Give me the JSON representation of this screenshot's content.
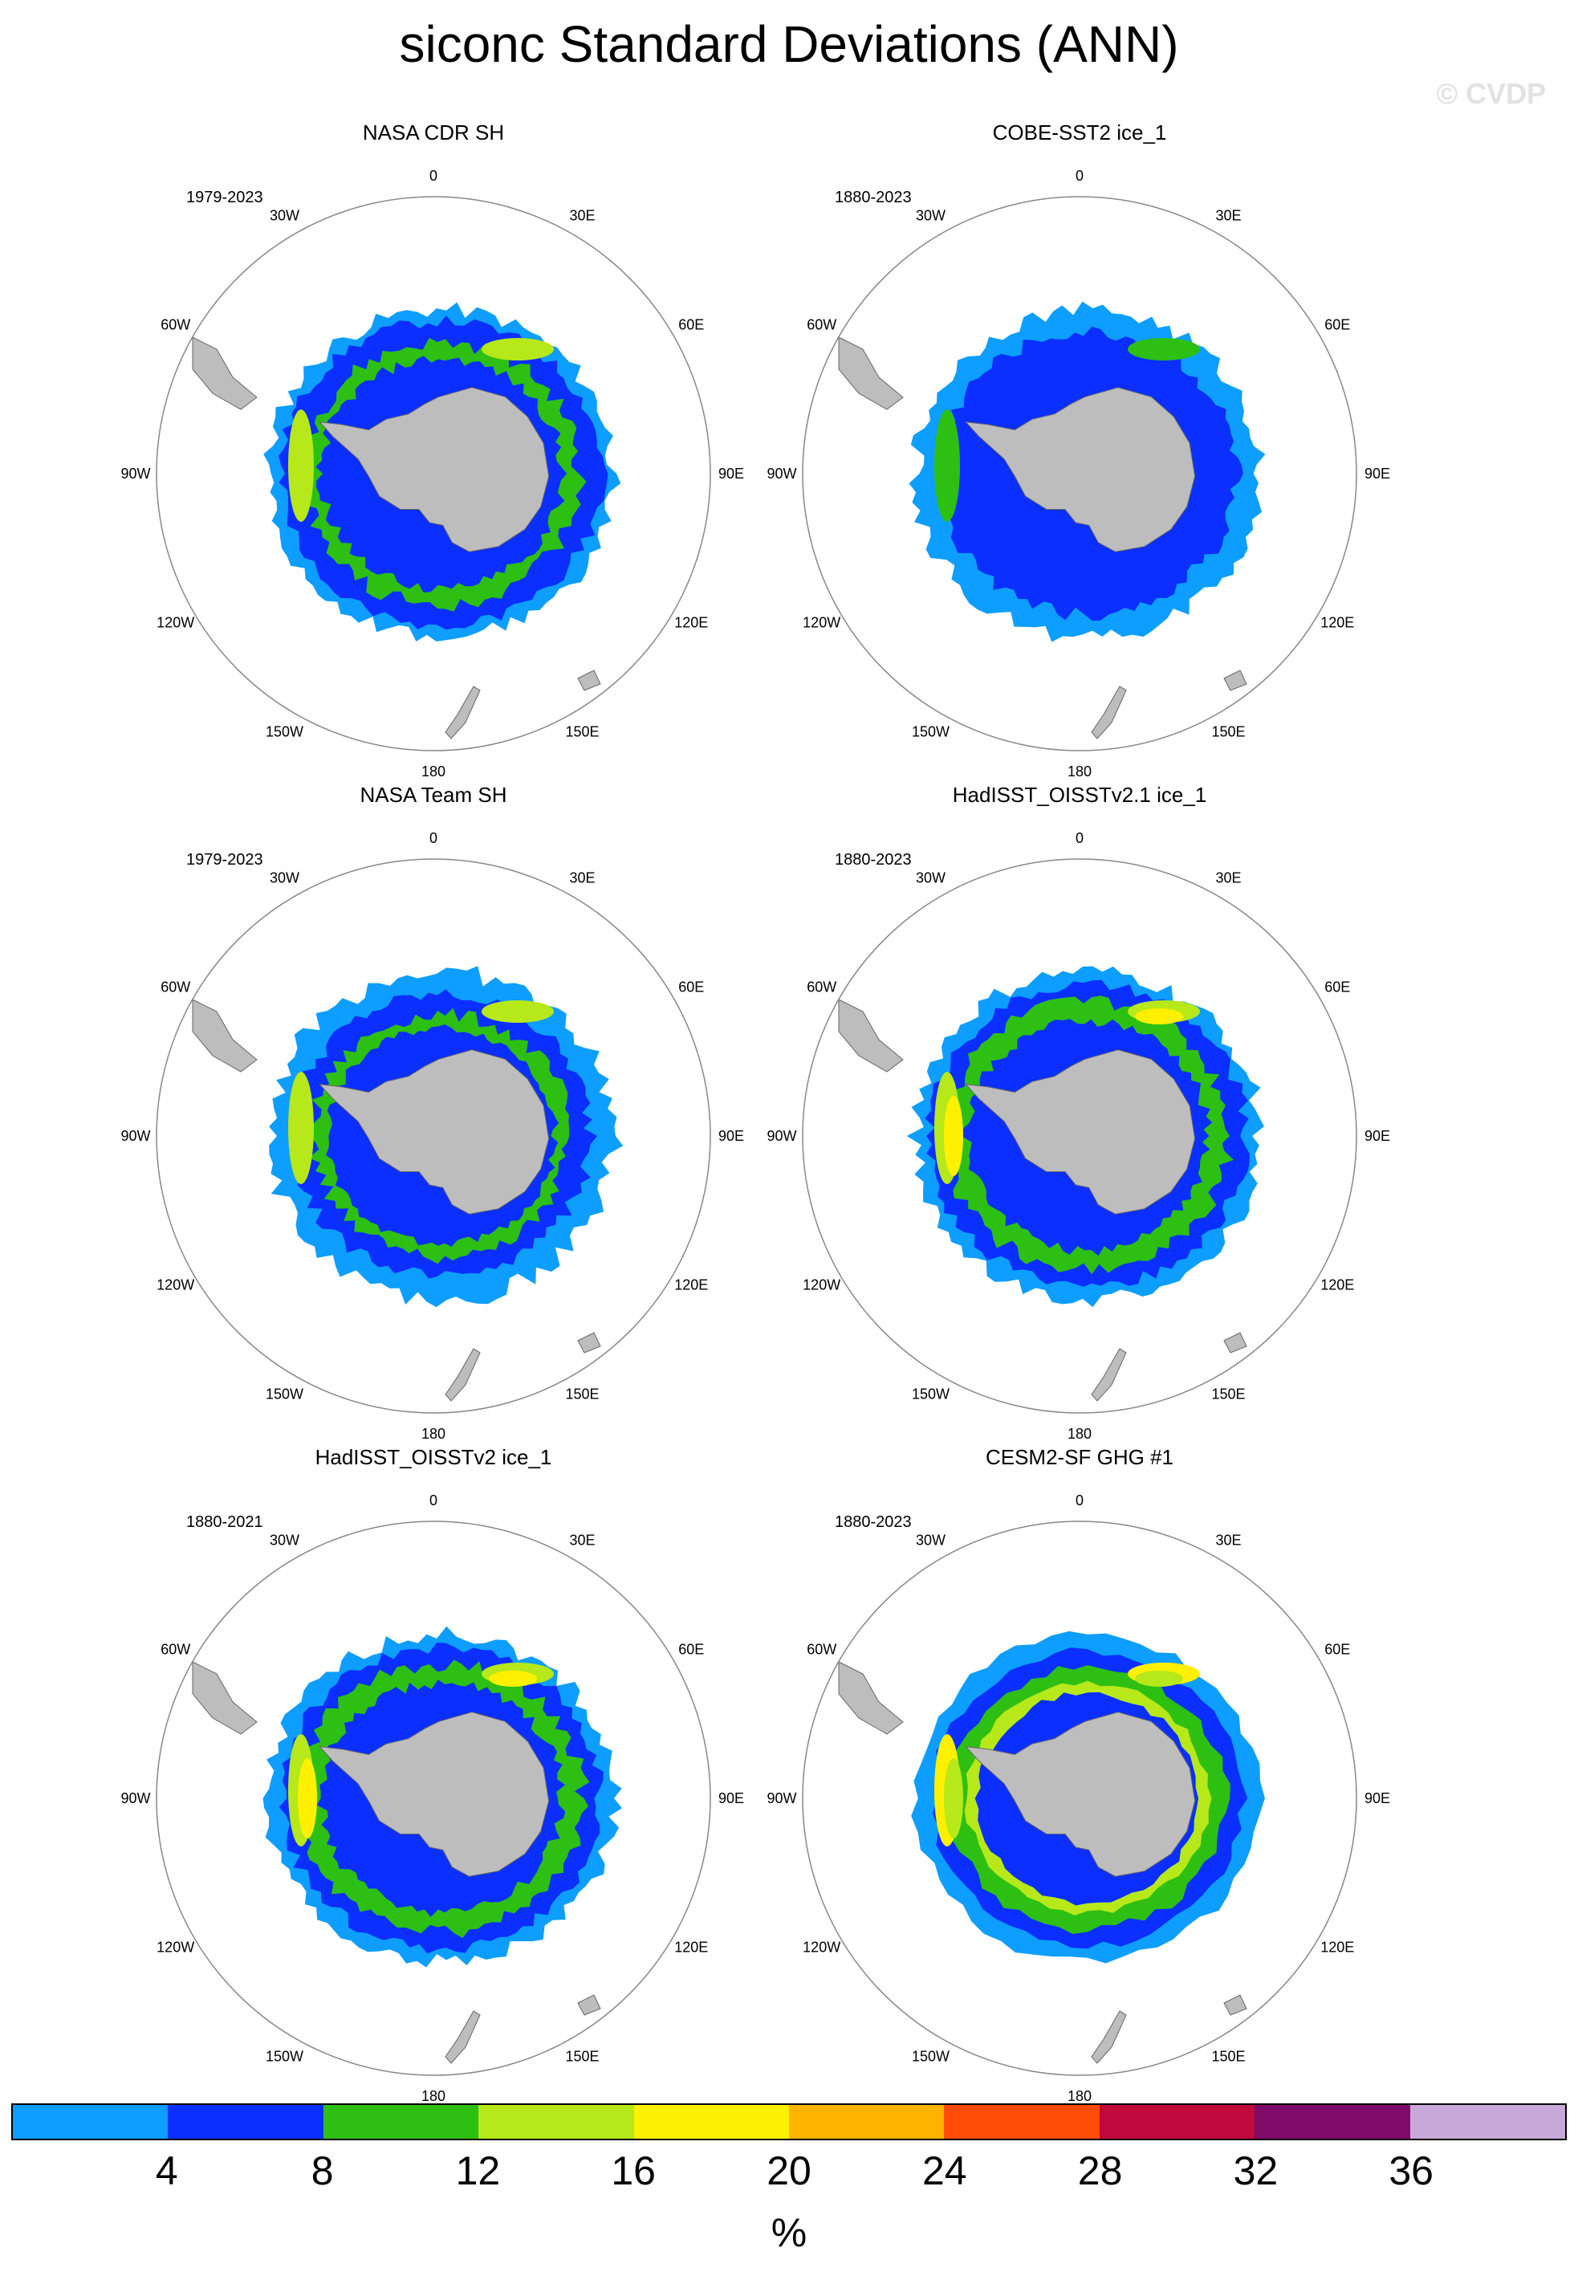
{
  "title": "siconc Standard Deviations (ANN)",
  "watermark": "© CVDP",
  "panels": [
    {
      "title": "NASA CDR SH",
      "period": "1979-2023",
      "style": "cdr"
    },
    {
      "title": "COBE-SST2 ice_1",
      "period": "1880-2023",
      "style": "cobe"
    },
    {
      "title": "NASA Team SH",
      "period": "1979-2023",
      "style": "team"
    },
    {
      "title": "HadISST_OISSTv2.1 ice_1",
      "period": "1880-2023",
      "style": "had21"
    },
    {
      "title": "HadISST_OISSTv2 ice_1",
      "period": "1880-2021",
      "style": "had2"
    },
    {
      "title": "CESM2-SF GHG #1",
      "period": "1880-2023",
      "style": "cesm"
    }
  ],
  "longitude_labels": [
    "0",
    "30E",
    "60E",
    "90E",
    "120E",
    "150E",
    "180",
    "150W",
    "120W",
    "90W",
    "60W",
    "30W"
  ],
  "colorbar": {
    "colors": [
      "#0d9eff",
      "#0b2fff",
      "#2dbf12",
      "#b6e81a",
      "#fff000",
      "#ffb400",
      "#ff4b08",
      "#c00a3c",
      "#800a6a",
      "#c8a8d8"
    ],
    "labels": [
      "4",
      "8",
      "12",
      "16",
      "20",
      "24",
      "28",
      "32",
      "36"
    ],
    "units": "%"
  },
  "colors": {
    "land": "#bdbdbd",
    "ocean": "#ffffff",
    "circle": "#888888"
  }
}
